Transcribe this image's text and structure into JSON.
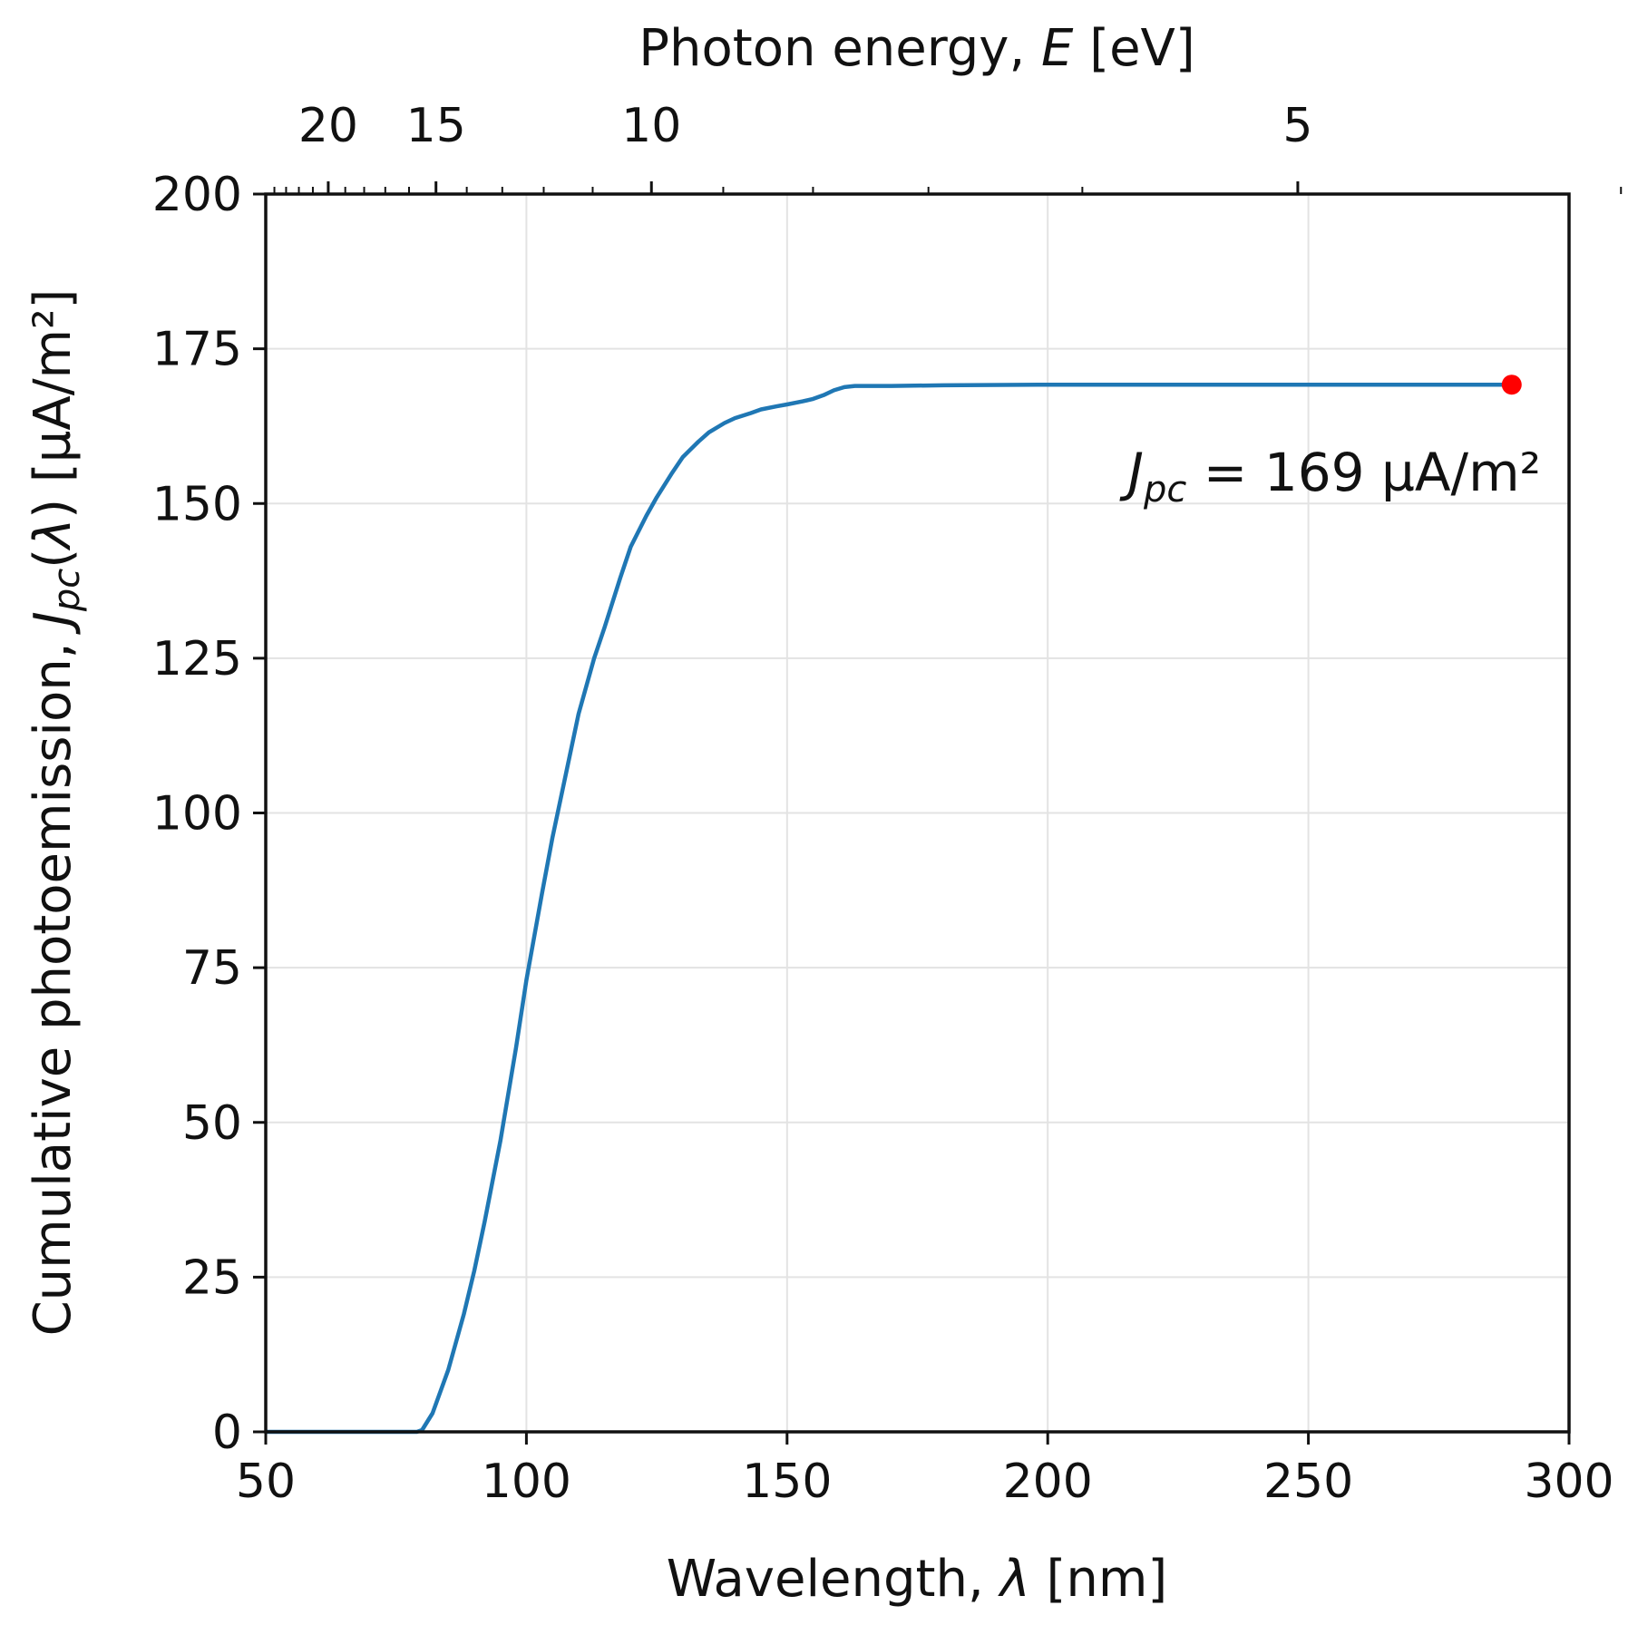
{
  "chart_data": {
    "type": "line",
    "xlabel_prefix": "Wavelength, ",
    "xlabel_symbol": "λ",
    "xlabel_suffix": " [nm]",
    "ylabel_prefix": "Cumulative photoemission, ",
    "ylabel_J": "J",
    "ylabel_sub": "pc",
    "ylabel_open": "(",
    "ylabel_symbol": "λ",
    "ylabel_close": ")",
    "ylabel_suffix": " [µA/m²]",
    "top_xlabel_prefix": "Photon energy, ",
    "top_xlabel_symbol": "E",
    "top_xlabel_suffix": " [eV]",
    "xlim": [
      50,
      300
    ],
    "ylim": [
      0,
      200
    ],
    "xticks": [
      50,
      100,
      150,
      200,
      250,
      300
    ],
    "yticks": [
      0,
      25,
      50,
      75,
      100,
      125,
      150,
      175,
      200
    ],
    "xtick_labels": [
      "50",
      "100",
      "150",
      "200",
      "250",
      "300"
    ],
    "ytick_labels": [
      "0",
      "25",
      "50",
      "75",
      "100",
      "125",
      "150",
      "175",
      "200"
    ],
    "top_major_ticks_ev": [
      20,
      15,
      10,
      5
    ],
    "top_major_labels": [
      "20",
      "15",
      "10",
      "5"
    ],
    "top_minor_ticks_ev": [
      19,
      18,
      17,
      16,
      14,
      13,
      12,
      11,
      9,
      8,
      7,
      6,
      4
    ],
    "grid": true,
    "series": [
      {
        "name": "Cumulative photoemission",
        "color": "#1f77b4",
        "x": [
          50,
          79,
          80,
          82,
          85,
          88,
          90,
          92,
          95,
          98,
          100,
          103,
          105,
          108,
          110,
          113,
          115,
          118,
          120,
          123,
          125,
          128,
          130,
          133,
          135,
          138,
          140,
          143,
          145,
          148,
          150,
          153,
          155,
          157,
          159,
          161,
          163,
          170,
          180,
          200,
          230,
          260,
          289
        ],
        "y": [
          0,
          0,
          0.3,
          3,
          10,
          19,
          26,
          34,
          47,
          62,
          73,
          87,
          96,
          108,
          116,
          125,
          130,
          138,
          143,
          148,
          151,
          155,
          157.5,
          160,
          161.5,
          163,
          163.8,
          164.6,
          165.2,
          165.7,
          166,
          166.5,
          166.9,
          167.5,
          168.3,
          168.8,
          169,
          169,
          169.1,
          169.2,
          169.2,
          169.2,
          169.2
        ]
      }
    ],
    "marker": {
      "x": 289,
      "y": 169.2,
      "color": "#ff0000"
    },
    "annotation": {
      "J": "J",
      "sub": "pc",
      "text": " = 169 µA/m²",
      "x": 255,
      "y": 155
    }
  }
}
